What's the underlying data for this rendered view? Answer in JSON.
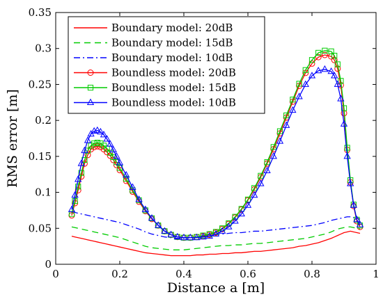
{
  "chart_data": {
    "type": "line",
    "title": "",
    "xlabel": "Distance a [m]",
    "ylabel": "RMS error [m]",
    "xlim": [
      0,
      1
    ],
    "ylim": [
      0,
      0.35
    ],
    "xticks": [
      0,
      0.2,
      0.4,
      0.6,
      0.8,
      1
    ],
    "xtick_labels": [
      "0",
      "0.2",
      "0.4",
      "0.6",
      "0.8",
      "1"
    ],
    "yticks": [
      0,
      0.05,
      0.1,
      0.15,
      0.2,
      0.25,
      0.3,
      0.35
    ],
    "ytick_labels": [
      "0",
      "0.05",
      "0.1",
      "0.15",
      "0.2",
      "0.25",
      "0.3",
      "0.35"
    ],
    "grid": false,
    "legend_position": "top-left",
    "x": [
      0.05,
      0.06,
      0.07,
      0.08,
      0.09,
      0.1,
      0.11,
      0.12,
      0.13,
      0.14,
      0.15,
      0.16,
      0.17,
      0.18,
      0.19,
      0.2,
      0.22,
      0.24,
      0.26,
      0.28,
      0.3,
      0.32,
      0.34,
      0.36,
      0.38,
      0.4,
      0.42,
      0.44,
      0.46,
      0.48,
      0.5,
      0.52,
      0.54,
      0.56,
      0.58,
      0.6,
      0.62,
      0.64,
      0.66,
      0.68,
      0.7,
      0.72,
      0.74,
      0.76,
      0.78,
      0.8,
      0.82,
      0.84,
      0.86,
      0.87,
      0.88,
      0.89,
      0.9,
      0.91,
      0.92,
      0.93,
      0.94,
      0.95
    ],
    "series": [
      {
        "name": "Boundary model: 20dB",
        "color": "#ff0000",
        "dash": "solid",
        "marker": "none",
        "values": [
          0.039,
          0.038,
          0.037,
          0.036,
          0.035,
          0.034,
          0.033,
          0.032,
          0.031,
          0.03,
          0.029,
          0.028,
          0.027,
          0.026,
          0.025,
          0.024,
          0.022,
          0.02,
          0.018,
          0.016,
          0.015,
          0.014,
          0.013,
          0.012,
          0.012,
          0.012,
          0.012,
          0.013,
          0.013,
          0.014,
          0.014,
          0.015,
          0.015,
          0.016,
          0.016,
          0.017,
          0.018,
          0.018,
          0.019,
          0.02,
          0.021,
          0.022,
          0.023,
          0.025,
          0.026,
          0.028,
          0.03,
          0.033,
          0.036,
          0.038,
          0.04,
          0.042,
          0.044,
          0.045,
          0.046,
          0.045,
          0.044,
          0.043
        ]
      },
      {
        "name": "Boundary model: 15dB",
        "color": "#00cc00",
        "dash": "dashed",
        "marker": "none",
        "values": [
          0.052,
          0.051,
          0.05,
          0.049,
          0.048,
          0.047,
          0.046,
          0.045,
          0.044,
          0.043,
          0.042,
          0.041,
          0.04,
          0.039,
          0.038,
          0.037,
          0.034,
          0.031,
          0.028,
          0.025,
          0.023,
          0.022,
          0.021,
          0.02,
          0.02,
          0.02,
          0.021,
          0.022,
          0.023,
          0.024,
          0.025,
          0.026,
          0.026,
          0.027,
          0.027,
          0.028,
          0.029,
          0.029,
          0.03,
          0.031,
          0.032,
          0.033,
          0.034,
          0.035,
          0.036,
          0.038,
          0.04,
          0.042,
          0.045,
          0.047,
          0.049,
          0.05,
          0.051,
          0.052,
          0.052,
          0.051,
          0.05,
          0.049
        ]
      },
      {
        "name": "Boundary model: 10dB",
        "color": "#0000ff",
        "dash": "dashdot",
        "marker": "none",
        "values": [
          0.073,
          0.072,
          0.071,
          0.07,
          0.069,
          0.068,
          0.067,
          0.066,
          0.065,
          0.064,
          0.063,
          0.062,
          0.061,
          0.06,
          0.059,
          0.058,
          0.055,
          0.052,
          0.049,
          0.045,
          0.042,
          0.04,
          0.038,
          0.037,
          0.036,
          0.036,
          0.037,
          0.038,
          0.039,
          0.04,
          0.041,
          0.042,
          0.043,
          0.044,
          0.044,
          0.045,
          0.046,
          0.046,
          0.047,
          0.048,
          0.049,
          0.05,
          0.051,
          0.052,
          0.053,
          0.054,
          0.056,
          0.058,
          0.061,
          0.062,
          0.063,
          0.064,
          0.065,
          0.066,
          0.066,
          0.065,
          0.064,
          0.063
        ]
      },
      {
        "name": "Boundless model: 20dB",
        "color": "#ff0000",
        "dash": "solid",
        "marker": "circle",
        "values": [
          0.068,
          0.085,
          0.103,
          0.122,
          0.14,
          0.152,
          0.16,
          0.163,
          0.164,
          0.163,
          0.16,
          0.156,
          0.151,
          0.145,
          0.138,
          0.131,
          0.116,
          0.101,
          0.087,
          0.074,
          0.063,
          0.054,
          0.046,
          0.041,
          0.038,
          0.037,
          0.037,
          0.038,
          0.039,
          0.041,
          0.044,
          0.049,
          0.056,
          0.065,
          0.076,
          0.089,
          0.104,
          0.121,
          0.14,
          0.16,
          0.182,
          0.204,
          0.226,
          0.248,
          0.266,
          0.279,
          0.288,
          0.291,
          0.289,
          0.284,
          0.272,
          0.249,
          0.21,
          0.159,
          0.114,
          0.081,
          0.06,
          0.052
        ]
      },
      {
        "name": "Boundless model: 15dB",
        "color": "#00cc00",
        "dash": "solid",
        "marker": "square",
        "values": [
          0.07,
          0.088,
          0.108,
          0.127,
          0.145,
          0.158,
          0.165,
          0.168,
          0.169,
          0.168,
          0.165,
          0.161,
          0.155,
          0.149,
          0.142,
          0.134,
          0.119,
          0.103,
          0.089,
          0.075,
          0.064,
          0.054,
          0.046,
          0.041,
          0.038,
          0.037,
          0.037,
          0.038,
          0.04,
          0.042,
          0.045,
          0.05,
          0.057,
          0.066,
          0.077,
          0.09,
          0.106,
          0.123,
          0.142,
          0.163,
          0.185,
          0.207,
          0.229,
          0.251,
          0.27,
          0.284,
          0.294,
          0.297,
          0.296,
          0.29,
          0.278,
          0.255,
          0.217,
          0.162,
          0.117,
          0.083,
          0.062,
          0.054
        ]
      },
      {
        "name": "Boundless model: 10dB",
        "color": "#0000ff",
        "dash": "solid",
        "marker": "triangle",
        "values": [
          0.076,
          0.096,
          0.118,
          0.14,
          0.158,
          0.172,
          0.181,
          0.185,
          0.186,
          0.184,
          0.18,
          0.174,
          0.167,
          0.159,
          0.15,
          0.141,
          0.124,
          0.107,
          0.09,
          0.076,
          0.064,
          0.054,
          0.046,
          0.041,
          0.038,
          0.037,
          0.037,
          0.037,
          0.038,
          0.039,
          0.042,
          0.046,
          0.052,
          0.06,
          0.07,
          0.082,
          0.096,
          0.112,
          0.13,
          0.15,
          0.171,
          0.193,
          0.214,
          0.233,
          0.25,
          0.262,
          0.269,
          0.271,
          0.268,
          0.262,
          0.25,
          0.23,
          0.195,
          0.15,
          0.112,
          0.082,
          0.062,
          0.055
        ]
      }
    ]
  }
}
